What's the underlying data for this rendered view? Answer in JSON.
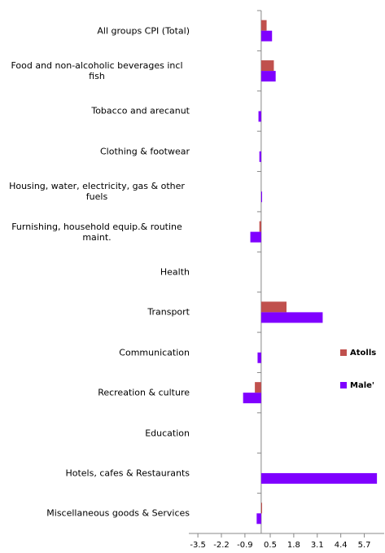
{
  "chart_data": {
    "type": "barh",
    "categories": [
      "All groups CPI (Total)",
      "Food and non-alcoholic beverages incl fish",
      "Tobacco and arecanut",
      "Clothing & footwear",
      "Housing, water, electricity, gas & other fuels",
      "Furnishing, household equip.& routine maint.",
      "Health",
      "Transport",
      "Communication",
      "Recreation & culture",
      "Education",
      "Hotels, cafes & Restaurants",
      "Miscellaneous goods & Services"
    ],
    "series": [
      {
        "name": "Atolls",
        "color": "#c0504d",
        "values": [
          0.3,
          0.7,
          0,
          0,
          0,
          -0.1,
          0,
          1.4,
          0,
          -0.35,
          0,
          0,
          0.05
        ]
      },
      {
        "name": "Male'",
        "color": "#7f00ff",
        "values": [
          0.6,
          0.8,
          -0.15,
          -0.1,
          0.05,
          -0.6,
          0,
          3.4,
          -0.2,
          -1.0,
          0,
          6.4,
          -0.25
        ]
      }
    ],
    "xlim": [
      -4.0,
      6.8
    ],
    "xticks": [
      -3.5,
      -2.2,
      -0.9,
      0.5,
      1.8,
      3.1,
      4.4,
      5.7
    ],
    "legend": "right"
  }
}
